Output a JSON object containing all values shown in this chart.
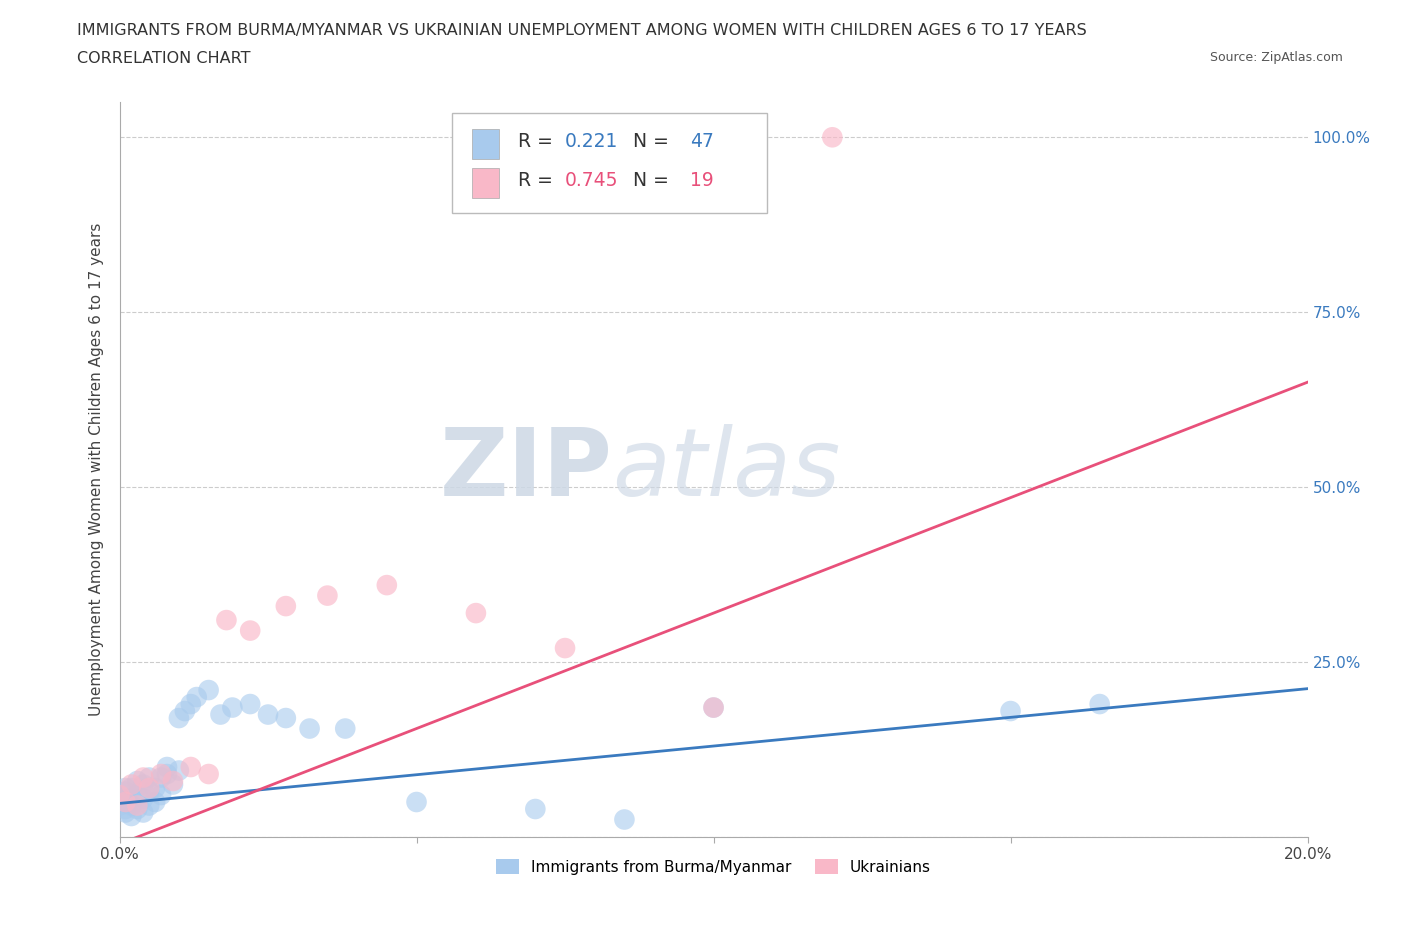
{
  "title_line1": "IMMIGRANTS FROM BURMA/MYANMAR VS UKRAINIAN UNEMPLOYMENT AMONG WOMEN WITH CHILDREN AGES 6 TO 17 YEARS",
  "title_line2": "CORRELATION CHART",
  "source_text": "Source: ZipAtlas.com",
  "ylabel": "Unemployment Among Women with Children Ages 6 to 17 years",
  "xlim": [
    0.0,
    0.2
  ],
  "ylim": [
    0.0,
    1.05
  ],
  "burma_R": "0.221",
  "burma_N": "47",
  "ukraine_R": "0.745",
  "ukraine_N": "19",
  "burma_color": "#a8caed",
  "ukraine_color": "#f9b8c8",
  "burma_line_color": "#3a7abf",
  "ukraine_line_color": "#e8507a",
  "watermark_ZIP": "ZIP",
  "watermark_atlas": "atlas",
  "burma_x": [
    0.0,
    0.0,
    0.0,
    0.001,
    0.001,
    0.001,
    0.001,
    0.001,
    0.002,
    0.002,
    0.002,
    0.002,
    0.003,
    0.003,
    0.003,
    0.004,
    0.004,
    0.004,
    0.005,
    0.005,
    0.005,
    0.006,
    0.006,
    0.007,
    0.007,
    0.008,
    0.008,
    0.009,
    0.01,
    0.01,
    0.011,
    0.012,
    0.013,
    0.015,
    0.017,
    0.019,
    0.022,
    0.025,
    0.028,
    0.032,
    0.038,
    0.05,
    0.07,
    0.085,
    0.1,
    0.15,
    0.165
  ],
  "burma_y": [
    0.055,
    0.045,
    0.06,
    0.05,
    0.065,
    0.035,
    0.07,
    0.04,
    0.055,
    0.045,
    0.07,
    0.03,
    0.06,
    0.04,
    0.08,
    0.055,
    0.075,
    0.035,
    0.065,
    0.045,
    0.085,
    0.07,
    0.05,
    0.06,
    0.085,
    0.09,
    0.1,
    0.075,
    0.095,
    0.17,
    0.18,
    0.19,
    0.2,
    0.21,
    0.175,
    0.185,
    0.19,
    0.175,
    0.17,
    0.155,
    0.155,
    0.05,
    0.04,
    0.025,
    0.185,
    0.18,
    0.19
  ],
  "ukraine_x": [
    0.0,
    0.001,
    0.002,
    0.003,
    0.004,
    0.005,
    0.007,
    0.009,
    0.012,
    0.015,
    0.018,
    0.022,
    0.028,
    0.035,
    0.045,
    0.06,
    0.075,
    0.1,
    0.12
  ],
  "ukraine_y": [
    0.06,
    0.05,
    0.075,
    0.045,
    0.085,
    0.07,
    0.09,
    0.08,
    0.1,
    0.09,
    0.31,
    0.295,
    0.33,
    0.345,
    0.36,
    0.32,
    0.27,
    0.185,
    1.0
  ]
}
